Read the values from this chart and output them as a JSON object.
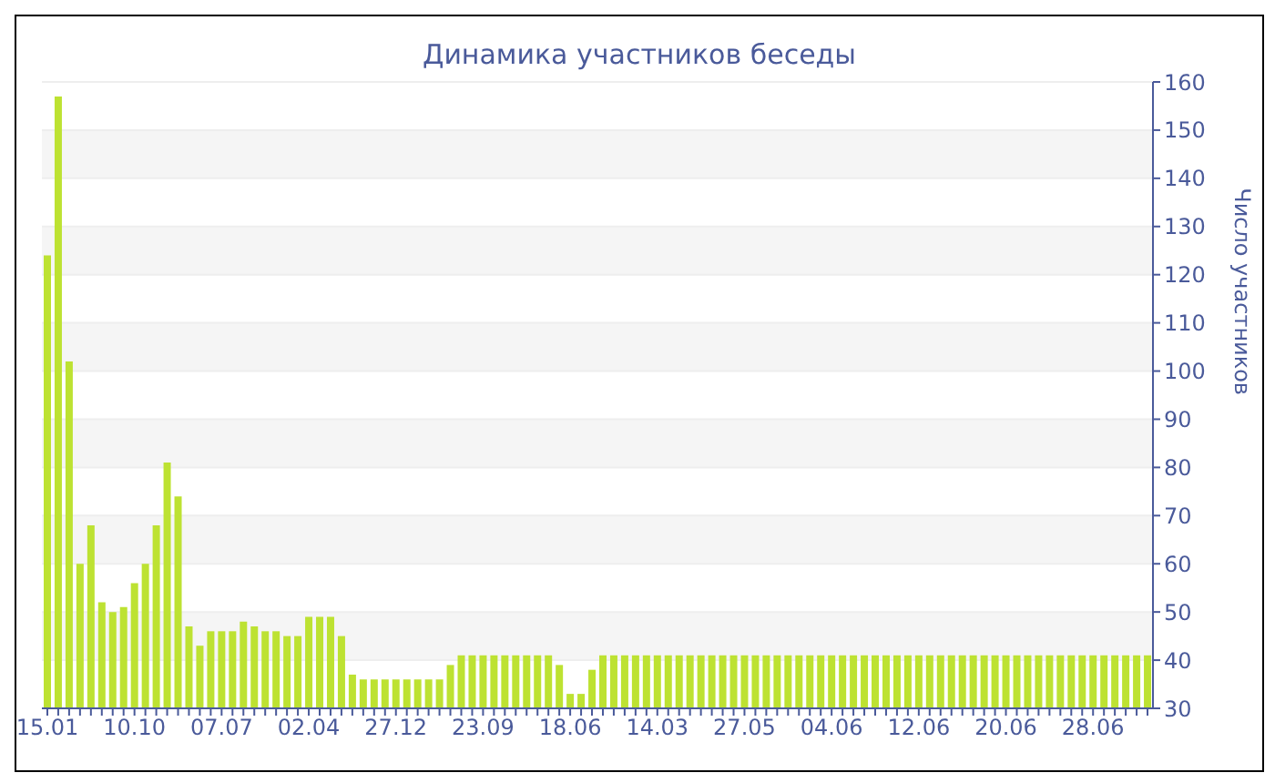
{
  "chart_data": {
    "type": "bar",
    "title": "Динамика участников беседы",
    "ylabel": "Число участников",
    "categories": [
      "15.01",
      null,
      null,
      null,
      null,
      null,
      null,
      null,
      "10.10",
      null,
      null,
      null,
      null,
      null,
      null,
      null,
      "07.07",
      null,
      null,
      null,
      null,
      null,
      null,
      null,
      "02.04",
      null,
      null,
      null,
      null,
      null,
      null,
      null,
      "27.12",
      null,
      null,
      null,
      null,
      null,
      null,
      null,
      "23.09",
      null,
      null,
      null,
      null,
      null,
      null,
      null,
      "18.06",
      null,
      null,
      null,
      null,
      null,
      null,
      null,
      "14.03",
      null,
      null,
      null,
      null,
      null,
      null,
      null,
      "27.05",
      null,
      null,
      null,
      null,
      null,
      null,
      null,
      "04.06",
      null,
      null,
      null,
      null,
      null,
      null,
      null,
      "12.06",
      null,
      null,
      null,
      null,
      null,
      null,
      null,
      "20.06",
      null,
      null,
      null,
      null,
      null,
      null,
      null,
      "28.06",
      null,
      null,
      null,
      null,
      null
    ],
    "values": [
      124,
      157,
      102,
      60,
      68,
      52,
      50,
      51,
      56,
      60,
      68,
      81,
      74,
      47,
      43,
      46,
      46,
      46,
      48,
      47,
      46,
      46,
      45,
      45,
      49,
      49,
      49,
      45,
      37,
      36,
      36,
      36,
      36,
      36,
      36,
      36,
      36,
      39,
      41,
      41,
      41,
      41,
      41,
      41,
      41,
      41,
      41,
      39,
      33,
      33,
      38,
      41,
      41,
      41,
      41,
      41,
      41,
      41,
      41,
      41,
      41,
      41,
      41,
      41,
      41,
      41,
      41,
      41,
      41,
      41,
      41,
      41,
      41,
      41,
      41,
      41,
      41,
      41,
      41,
      41,
      41,
      41,
      41,
      41,
      41,
      41,
      41,
      41,
      41,
      41,
      41,
      41,
      41,
      41,
      41,
      41,
      41,
      41,
      41,
      41,
      41,
      41
    ],
    "color": "#bde232",
    "ylim": [
      30,
      160
    ],
    "yticks": [
      30,
      40,
      50,
      60,
      70,
      80,
      90,
      100,
      110,
      120,
      130,
      140,
      150,
      160
    ],
    "grid": "y"
  }
}
